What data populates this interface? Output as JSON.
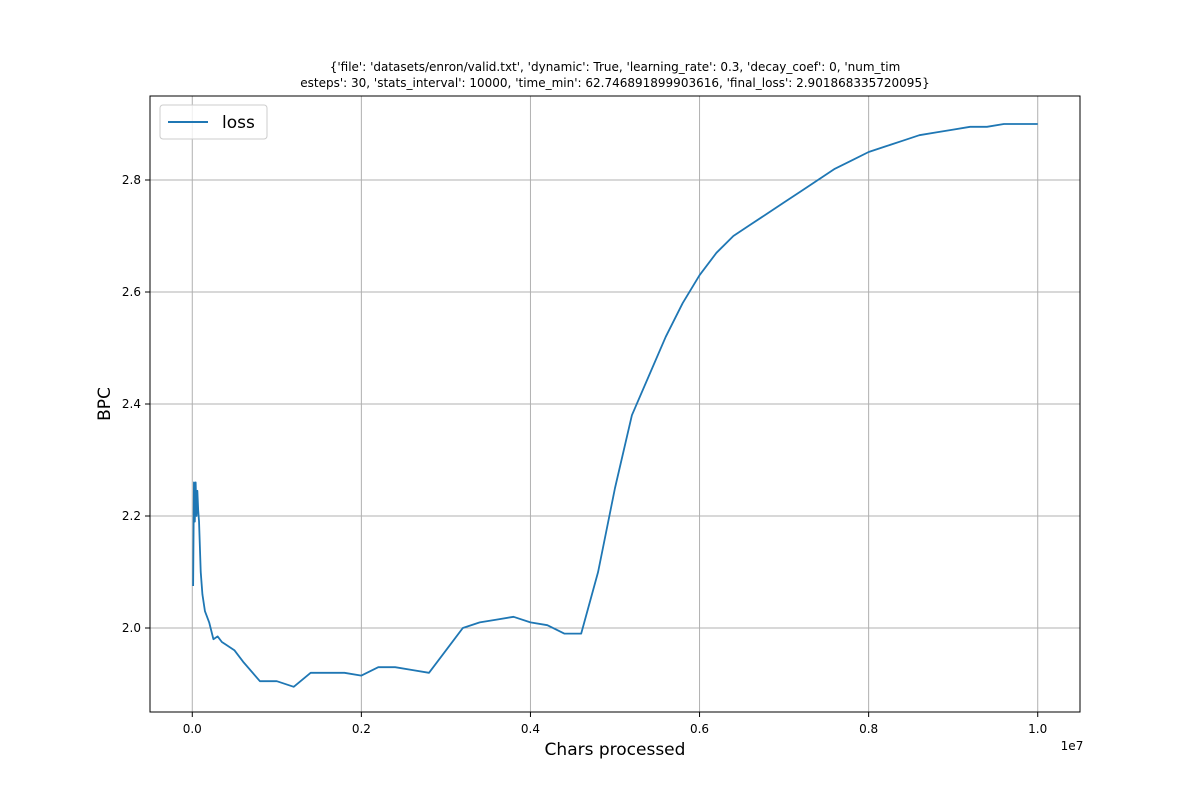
{
  "chart_data": {
    "type": "line",
    "title_lines": [
      "{'file': 'datasets/enron/valid.txt', 'dynamic': True, 'learning_rate': 0.3, 'decay_coef': 0, 'num_tim",
      "esteps': 30, 'stats_interval': 10000, 'time_min': 62.746891899903616, 'final_loss': 2.901868335720095}"
    ],
    "xlabel": "Chars processed",
    "ylabel": "BPC",
    "x_offset_label": "1e7",
    "xlim": [
      -0.05,
      1.05
    ],
    "ylim": [
      1.85,
      2.95
    ],
    "x_ticks": [
      0.0,
      0.2,
      0.4,
      0.6,
      0.8,
      1.0
    ],
    "x_tick_labels": [
      "0.0",
      "0.2",
      "0.4",
      "0.6",
      "0.8",
      "1.0"
    ],
    "y_ticks": [
      2.0,
      2.2,
      2.4,
      2.6,
      2.8
    ],
    "y_tick_labels": [
      "2.0",
      "2.2",
      "2.4",
      "2.6",
      "2.8"
    ],
    "grid": true,
    "legend_position": "upper-left",
    "series": [
      {
        "name": "loss",
        "color": "#1f77b4",
        "x": [
          0.001,
          0.002,
          0.003,
          0.004,
          0.005,
          0.006,
          0.007,
          0.008,
          0.01,
          0.012,
          0.015,
          0.02,
          0.025,
          0.03,
          0.035,
          0.04,
          0.05,
          0.06,
          0.08,
          0.1,
          0.12,
          0.14,
          0.16,
          0.18,
          0.2,
          0.22,
          0.24,
          0.26,
          0.28,
          0.3,
          0.32,
          0.34,
          0.36,
          0.38,
          0.4,
          0.42,
          0.44,
          0.46,
          0.48,
          0.5,
          0.52,
          0.54,
          0.56,
          0.58,
          0.6,
          0.62,
          0.64,
          0.66,
          0.68,
          0.7,
          0.72,
          0.74,
          0.76,
          0.78,
          0.8,
          0.82,
          0.84,
          0.86,
          0.88,
          0.9,
          0.92,
          0.94,
          0.96,
          0.98,
          1.0
        ],
        "y": [
          2.075,
          2.26,
          2.19,
          2.26,
          2.2,
          2.245,
          2.21,
          2.19,
          2.1,
          2.06,
          2.03,
          2.01,
          1.98,
          1.985,
          1.975,
          1.97,
          1.96,
          1.94,
          1.905,
          1.905,
          1.895,
          1.92,
          1.92,
          1.92,
          1.915,
          1.93,
          1.93,
          1.925,
          1.92,
          1.96,
          2.0,
          2.01,
          2.015,
          2.02,
          2.01,
          2.005,
          1.99,
          1.99,
          2.1,
          2.25,
          2.38,
          2.45,
          2.52,
          2.58,
          2.63,
          2.67,
          2.7,
          2.72,
          2.74,
          2.76,
          2.78,
          2.8,
          2.82,
          2.835,
          2.85,
          2.86,
          2.87,
          2.88,
          2.885,
          2.89,
          2.895,
          2.895,
          2.9,
          2.9,
          2.9
        ]
      }
    ]
  }
}
